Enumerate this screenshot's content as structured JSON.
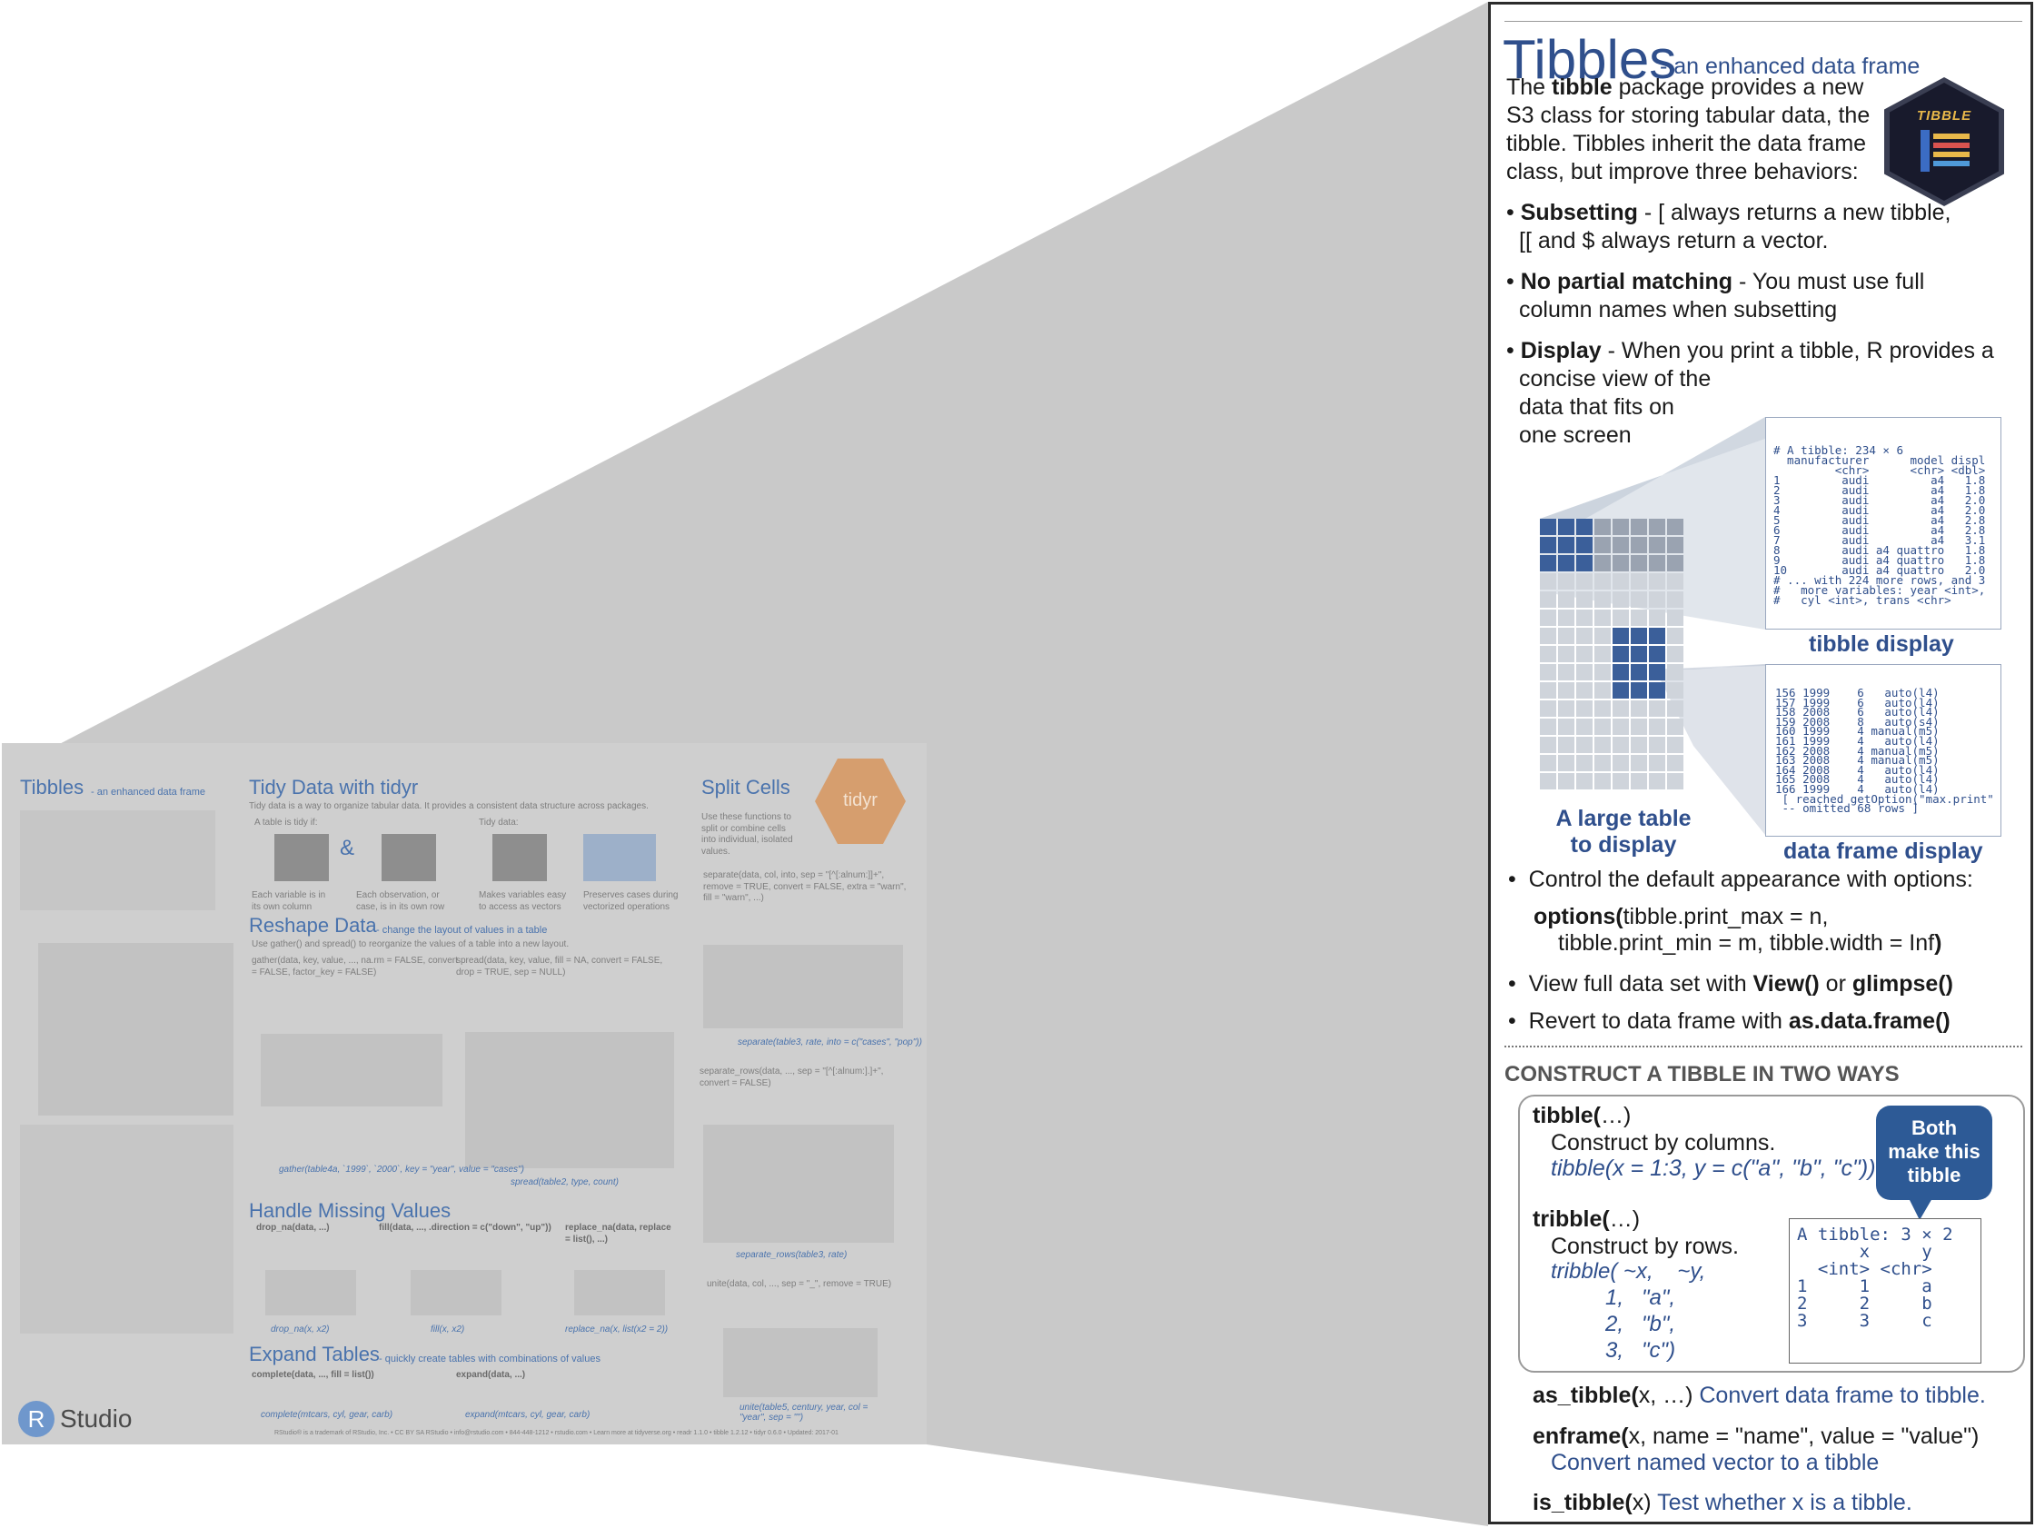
{
  "thumbnail": {
    "tibbles_title": "Tibbles",
    "tibbles_sub": "- an enhanced data frame",
    "tidy_title": "Tidy Data with tidyr",
    "tidy_intro": "Tidy data is a way to organize tabular data. It provides a consistent data structure across packages.",
    "tidy_if": "A table is tidy if:",
    "tidy_data": "Tidy data:",
    "each_variable": "Each variable is in its own column",
    "each_observation": "Each observation, or case, is in its own row",
    "makes_easy": "Makes variables easy to access as vectors",
    "preserves": "Preserves cases during vectorized operations",
    "split_title": "Split Cells",
    "split_intro": "Use these functions to split or combine cells into individual, isolated values.",
    "tidyr_logo": "tidyr",
    "reshape_title": "Reshape Data",
    "reshape_sub": "- change the layout of values in a table",
    "reshape_intro": "Use gather() and spread() to reorganize the values of a table into a new layout.",
    "gather_sig": "gather(data, key, value, ..., na.rm = FALSE, convert = FALSE, factor_key = FALSE)",
    "spread_sig": "spread(data, key, value, fill = NA, convert = FALSE, drop = TRUE, sep = NULL)",
    "gather_cap": "gather(table4a, `1999`, `2000`, key = \"year\", value = \"cases\")",
    "spread_cap": "spread(table2, type, count)",
    "separate_sig": "separate(data, col, into, sep = \"[^[:alnum:]]+\", remove = TRUE, convert = FALSE, extra = \"warn\", fill = \"warn\", ...)",
    "separate_cap": "separate(table3, rate, into = c(\"cases\", \"pop\"))",
    "separate_rows_sig": "separate_rows(data, ..., sep = \"[^[:alnum:].]+\", convert = FALSE)",
    "separate_rows_cap": "separate_rows(table3, rate)",
    "unite_sig": "unite(data, col, ..., sep = \"_\", remove = TRUE)",
    "unite_cap": "unite(table5, century, year, col = \"year\", sep = \"\")",
    "missing_title": "Handle Missing Values",
    "drop_na": "drop_na(data, ...)",
    "fill": "fill(data, ..., .direction = c(\"down\", \"up\"))",
    "replace_na": "replace_na(data, replace = list(), ...)",
    "drop_na_cap": "drop_na(x, x2)",
    "fill_cap": "fill(x, x2)",
    "replace_na_cap": "replace_na(x, list(x2 = 2))",
    "expand_title": "Expand Tables",
    "expand_sub": "- quickly create tables with combinations of values",
    "complete": "complete(data, ..., fill = list())",
    "expand": "expand(data, ...)",
    "complete_cap": "complete(mtcars, cyl, gear, carb)",
    "expand_cap": "expand(mtcars, cyl, gear, carb)",
    "rstudio": "Studio",
    "rstudio_r": "R",
    "footer": "RStudio® is a trademark of RStudio, Inc. • CC BY SA RStudio • info@rstudio.com • 844-448-1212 • rstudio.com • Learn more at tidyverse.org • readr 1.1.0 • tibble 1.2.12 • tidyr 0.6.0 • Updated: 2017-01"
  },
  "panel": {
    "title": "Tibbles",
    "subtitle": "- an enhanced data frame",
    "logo_text": "TIBBLE",
    "intro": [
      "The tibble package provides a new",
      "S3 class for storing tabular data, the",
      "tibble. Tibbles inherit the data frame",
      "class, but improve three behaviors:"
    ],
    "intro_bold": "tibble",
    "subsetting_term": "Subsetting",
    "subsetting_text": " - [ always returns a new tibble,",
    "subsetting_text2": "[[ and $ always return a vector.",
    "partial_term": "No partial matching",
    "partial_text": " - You must use full",
    "partial_text2": "column names when subsetting",
    "display_term": "Display",
    "display_text": " - When you print a tibble, R provides a",
    "display_lines": [
      "concise view of the",
      "data that fits on",
      "one screen"
    ],
    "tibble_display_code": "# A tibble: 234 × 6\n  manufacturer      model displ\n         <chr>      <chr> <dbl>\n1         audi         a4   1.8\n2         audi         a4   1.8\n3         audi         a4   2.0\n4         audi         a4   2.0\n5         audi         a4   2.8\n6         audi         a4   2.8\n7         audi         a4   3.1\n8         audi a4 quattro   1.8\n9         audi a4 quattro   1.8\n10        audi a4 quattro   2.0\n# ... with 224 more rows, and 3\n#   more variables: year <int>,\n#   cyl <int>, trans <chr>",
    "tibble_display_label": "tibble display",
    "df_display_code": "156 1999    6   auto(l4)\n157 1999    6   auto(l4)\n158 2008    6   auto(l4)\n159 2008    8   auto(s4)\n160 1999    4 manual(m5)\n161 1999    4   auto(l4)\n162 2008    4 manual(m5)\n163 2008    4 manual(m5)\n164 2008    4   auto(l4)\n165 2008    4   auto(l4)\n166 1999    4   auto(l4)\n [ reached getOption(\"max.print\"\n -- omitted 68 rows ]",
    "df_display_label": "data frame display",
    "large_table_label": [
      "A large table",
      "to display"
    ],
    "control_text": "Control the default appearance with options:",
    "options_fn": "options(",
    "options_args1": "tibble.print_max = n,",
    "options_args2": "tibble.print_min = m, tibble.width = Inf",
    "options_close": ")",
    "view_prefix": "View full data set with ",
    "view_fn": "View()",
    "view_or": " or ",
    "glimpse_fn": "glimpse()",
    "revert_prefix": "Revert to data frame with ",
    "revert_fn": "as.data.frame()",
    "construct_heading": "CONSTRUCT A TIBBLE IN TWO WAYS",
    "tibble_fn": "tibble(",
    "tibble_dots": "…)",
    "tibble_desc": "Construct by columns.",
    "tibble_example": "tibble(x = 1:3, y = c(\"a\", \"b\", \"c\"))",
    "tribble_fn": "tribble(",
    "tribble_dots": "…)",
    "tribble_desc": "Construct by rows.",
    "tribble_lines": [
      "tribble( ~x,    ~y,",
      "         1,   \"a\",",
      "         2,   \"b\",",
      "         3,   \"c\")"
    ],
    "bubble": [
      "Both",
      "make this",
      "tibble"
    ],
    "result_code": "A tibble: 3 × 2\n      x     y\n  <int> <chr>\n1     1     a\n2     2     b\n3     3     c",
    "as_tibble_fn": "as_tibble(",
    "as_tibble_args": "x, …)",
    "as_tibble_desc": "Convert data frame to tibble.",
    "enframe_fn": "enframe(",
    "enframe_args": "x, name = \"name\", value = \"value\")",
    "enframe_desc": "Convert named vector to a tibble",
    "is_tibble_fn": "is_tibble(",
    "is_tibble_args": "x)",
    "is_tibble_desc": "Test whether x is a tibble."
  },
  "colors": {
    "accent": "#3a5f9c",
    "highlight_cell": "#3b5f9a",
    "grey_cell": "#9aa3b1",
    "light_cell": "#cfd4db",
    "zoom": "#c8c8c8"
  }
}
